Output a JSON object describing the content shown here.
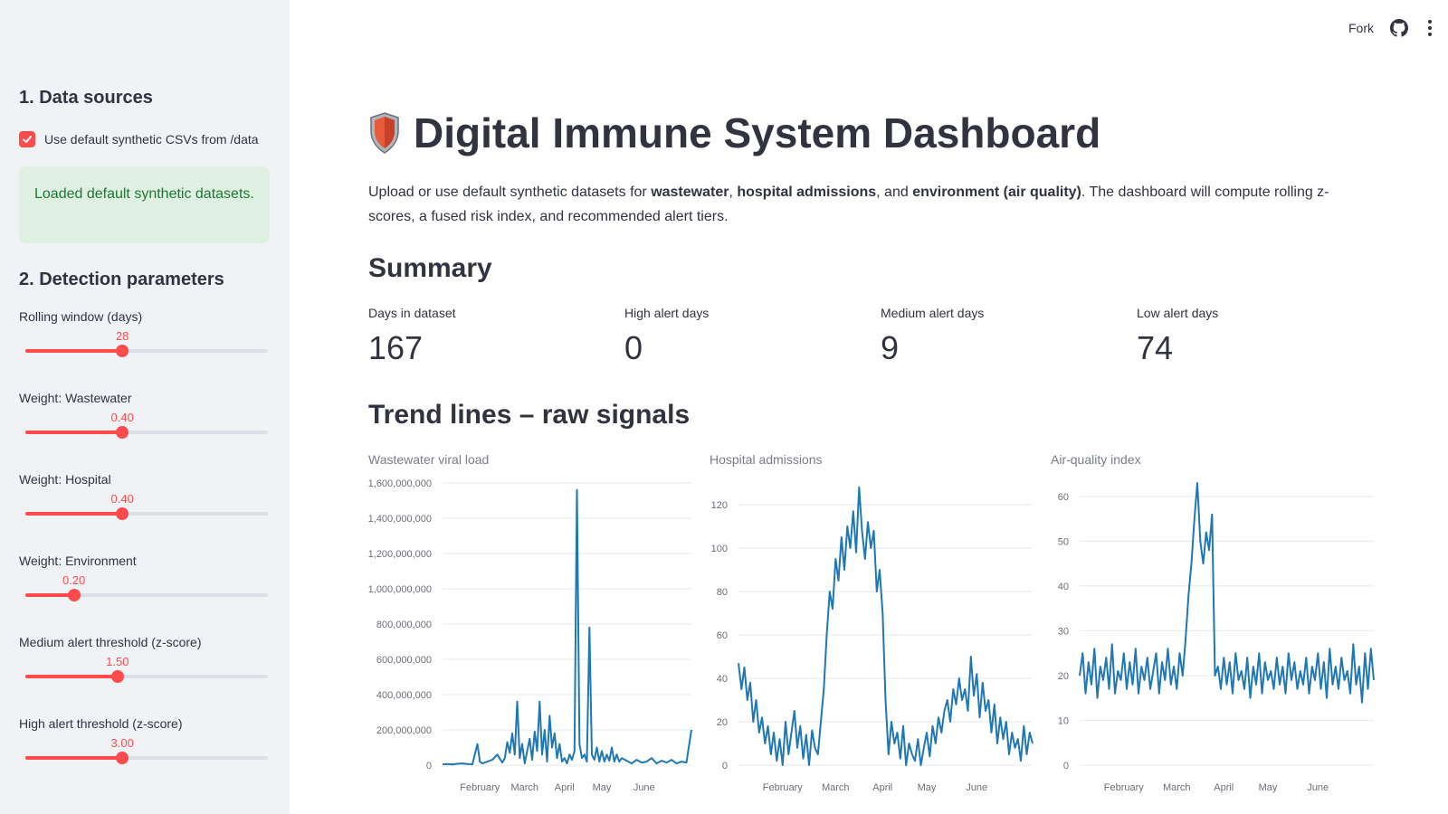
{
  "header": {
    "fork_label": "Fork"
  },
  "sidebar": {
    "section1_title": "1. Data sources",
    "checkbox_label": "Use default synthetic CSVs from /data",
    "success_message": "Loaded default synthetic datasets.",
    "section2_title": "2. Detection parameters",
    "sliders": [
      {
        "label": "Rolling window (days)",
        "value_text": "28",
        "fraction": 0.4
      },
      {
        "label": "Weight: Wastewater",
        "value_text": "0.40",
        "fraction": 0.4
      },
      {
        "label": "Weight: Hospital",
        "value_text": "0.40",
        "fraction": 0.4
      },
      {
        "label": "Weight: Environment",
        "value_text": "0.20",
        "fraction": 0.2
      },
      {
        "label": "Medium alert threshold (z-score)",
        "value_text": "1.50",
        "fraction": 0.38
      },
      {
        "label": "High alert threshold (z-score)",
        "value_text": "3.00",
        "fraction": 0.4
      }
    ],
    "accent_color": "#ff4b4b"
  },
  "main": {
    "title": "Digital Immune System Dashboard",
    "intro": {
      "p1": "Upload or use default synthetic datasets for ",
      "b1": "wastewater",
      "p2": ", ",
      "b2": "hospital admissions",
      "p3": ", and ",
      "b3": "environment (air quality)",
      "p4": ". The dashboard will compute rolling z-scores, a fused risk index, and recommended alert tiers."
    },
    "summary_title": "Summary",
    "metrics": [
      {
        "label": "Days in dataset",
        "value": "167"
      },
      {
        "label": "High alert days",
        "value": "0"
      },
      {
        "label": "Medium alert days",
        "value": "9"
      },
      {
        "label": "Low alert days",
        "value": "74"
      }
    ],
    "trend_title": "Trend lines – raw signals"
  },
  "chart_data": [
    {
      "type": "line",
      "title": "Wastewater viral load",
      "line_color": "#1f77b4",
      "ylim": [
        0,
        1600000000
      ],
      "y_ticks": [
        0,
        200000000,
        400000000,
        600000000,
        800000000,
        1000000000,
        1200000000,
        1400000000,
        1600000000
      ],
      "y_tick_labels": [
        "0",
        "200,000,000",
        "400,000,000",
        "600,000,000",
        "800,000,000",
        "1,000,000,000",
        "1,200,000,000",
        "1,400,000,000",
        "1,600,000,000"
      ],
      "x_ticks": [
        15,
        33,
        49,
        64,
        81
      ],
      "x_tick_labels": [
        "February",
        "March",
        "April",
        "May",
        "June"
      ],
      "x": [
        0,
        2,
        4,
        6,
        8,
        10,
        12,
        14,
        15,
        16,
        17,
        18,
        20,
        22,
        24,
        25,
        26,
        27,
        28,
        29,
        30,
        31,
        32,
        33,
        34,
        35,
        36,
        37,
        38,
        39,
        40,
        41,
        42,
        43,
        44,
        45,
        46,
        47,
        48,
        49,
        50,
        51,
        52,
        53,
        54,
        55,
        56,
        57,
        58,
        59,
        60,
        61,
        62,
        63,
        64,
        65,
        66,
        67,
        68,
        69,
        70,
        71,
        72,
        74,
        76,
        78,
        80,
        82,
        84,
        86,
        88,
        90,
        92,
        94,
        96,
        98,
        100
      ],
      "values": [
        5000000,
        6000000,
        4000000,
        8000000,
        10000000,
        6000000,
        5000000,
        120000000,
        20000000,
        10000000,
        15000000,
        20000000,
        30000000,
        60000000,
        15000000,
        40000000,
        130000000,
        70000000,
        180000000,
        60000000,
        360000000,
        40000000,
        120000000,
        10000000,
        80000000,
        150000000,
        30000000,
        190000000,
        80000000,
        360000000,
        60000000,
        200000000,
        20000000,
        280000000,
        100000000,
        180000000,
        40000000,
        120000000,
        20000000,
        40000000,
        10000000,
        60000000,
        30000000,
        80000000,
        1560000000,
        120000000,
        40000000,
        60000000,
        20000000,
        780000000,
        60000000,
        30000000,
        100000000,
        20000000,
        80000000,
        20000000,
        60000000,
        25000000,
        100000000,
        20000000,
        60000000,
        20000000,
        40000000,
        25000000,
        10000000,
        30000000,
        15000000,
        20000000,
        40000000,
        10000000,
        25000000,
        15000000,
        30000000,
        10000000,
        20000000,
        15000000,
        200000000
      ]
    },
    {
      "type": "line",
      "title": "Hospital admissions",
      "line_color": "#1f77b4",
      "ylim": [
        0,
        130
      ],
      "y_ticks": [
        0,
        20,
        40,
        60,
        80,
        100,
        120
      ],
      "y_tick_labels": [
        "0",
        "20",
        "40",
        "60",
        "80",
        "100",
        "120"
      ],
      "x_ticks": [
        15,
        33,
        49,
        64,
        81
      ],
      "x_tick_labels": [
        "February",
        "March",
        "April",
        "May",
        "June"
      ],
      "x": [
        0,
        1,
        2,
        3,
        4,
        5,
        6,
        7,
        8,
        9,
        10,
        11,
        12,
        13,
        14,
        15,
        16,
        17,
        18,
        19,
        20,
        21,
        22,
        23,
        24,
        25,
        26,
        27,
        28,
        29,
        30,
        31,
        32,
        33,
        34,
        35,
        36,
        37,
        38,
        39,
        40,
        41,
        42,
        43,
        44,
        45,
        46,
        47,
        48,
        49,
        50,
        51,
        52,
        53,
        54,
        55,
        56,
        57,
        58,
        59,
        60,
        61,
        62,
        63,
        64,
        65,
        66,
        67,
        68,
        69,
        70,
        71,
        72,
        73,
        74,
        75,
        76,
        77,
        78,
        79,
        80,
        81,
        82,
        83,
        84,
        85,
        86,
        87,
        88,
        89,
        90,
        91,
        92,
        93,
        94,
        95,
        96,
        97,
        98,
        99,
        100
      ],
      "values": [
        47,
        35,
        45,
        30,
        38,
        20,
        30,
        15,
        22,
        10,
        18,
        5,
        15,
        2,
        12,
        0,
        20,
        5,
        15,
        25,
        8,
        18,
        3,
        14,
        0,
        16,
        8,
        5,
        20,
        35,
        60,
        80,
        72,
        95,
        85,
        105,
        90,
        110,
        100,
        117,
        98,
        128,
        108,
        95,
        112,
        100,
        108,
        80,
        90,
        70,
        30,
        5,
        20,
        10,
        15,
        3,
        18,
        0,
        10,
        5,
        2,
        12,
        0,
        8,
        15,
        4,
        18,
        10,
        22,
        15,
        25,
        30,
        20,
        35,
        28,
        40,
        30,
        35,
        25,
        50,
        32,
        42,
        22,
        38,
        25,
        30,
        15,
        28,
        10,
        22,
        12,
        20,
        5,
        15,
        8,
        12,
        2,
        18,
        5,
        15,
        10
      ]
    },
    {
      "type": "line",
      "title": "Air-quality index",
      "line_color": "#1f77b4",
      "ylim": [
        0,
        63
      ],
      "y_ticks": [
        0,
        10,
        20,
        30,
        40,
        50,
        60
      ],
      "y_tick_labels": [
        "0",
        "10",
        "20",
        "30",
        "40",
        "50",
        "60"
      ],
      "x_ticks": [
        15,
        33,
        49,
        64,
        81
      ],
      "x_tick_labels": [
        "February",
        "March",
        "April",
        "May",
        "June"
      ],
      "x": [
        0,
        1,
        2,
        3,
        4,
        5,
        6,
        7,
        8,
        9,
        10,
        11,
        12,
        13,
        14,
        15,
        16,
        17,
        18,
        19,
        20,
        21,
        22,
        23,
        24,
        25,
        26,
        27,
        28,
        29,
        30,
        31,
        32,
        33,
        34,
        35,
        36,
        37,
        38,
        39,
        40,
        41,
        42,
        43,
        44,
        45,
        46,
        47,
        48,
        49,
        50,
        51,
        52,
        53,
        54,
        55,
        56,
        57,
        58,
        59,
        60,
        61,
        62,
        63,
        64,
        65,
        66,
        67,
        68,
        69,
        70,
        71,
        72,
        73,
        74,
        75,
        76,
        77,
        78,
        79,
        80,
        81,
        82,
        83,
        84,
        85,
        86,
        87,
        88,
        89,
        90,
        91,
        92,
        93,
        94,
        95,
        96,
        97,
        98,
        99,
        100
      ],
      "values": [
        20,
        25,
        16,
        23,
        18,
        26,
        15,
        22,
        19,
        24,
        17,
        27,
        16,
        21,
        19,
        25,
        17,
        23,
        18,
        26,
        16,
        22,
        19,
        24,
        17,
        21,
        25,
        16,
        23,
        19,
        26,
        18,
        22,
        17,
        25,
        20,
        28,
        38,
        45,
        55,
        63,
        50,
        45,
        52,
        48,
        56,
        20,
        22,
        17,
        24,
        18,
        23,
        16,
        25,
        19,
        21,
        17,
        24,
        15,
        22,
        18,
        25,
        16,
        23,
        19,
        21,
        17,
        24,
        18,
        22,
        16,
        25,
        19,
        23,
        17,
        21,
        18,
        24,
        16,
        22,
        19,
        25,
        17,
        23,
        15,
        26,
        18,
        22,
        17,
        24,
        19,
        21,
        16,
        27,
        18,
        22,
        14,
        25,
        17,
        26,
        19
      ]
    }
  ]
}
